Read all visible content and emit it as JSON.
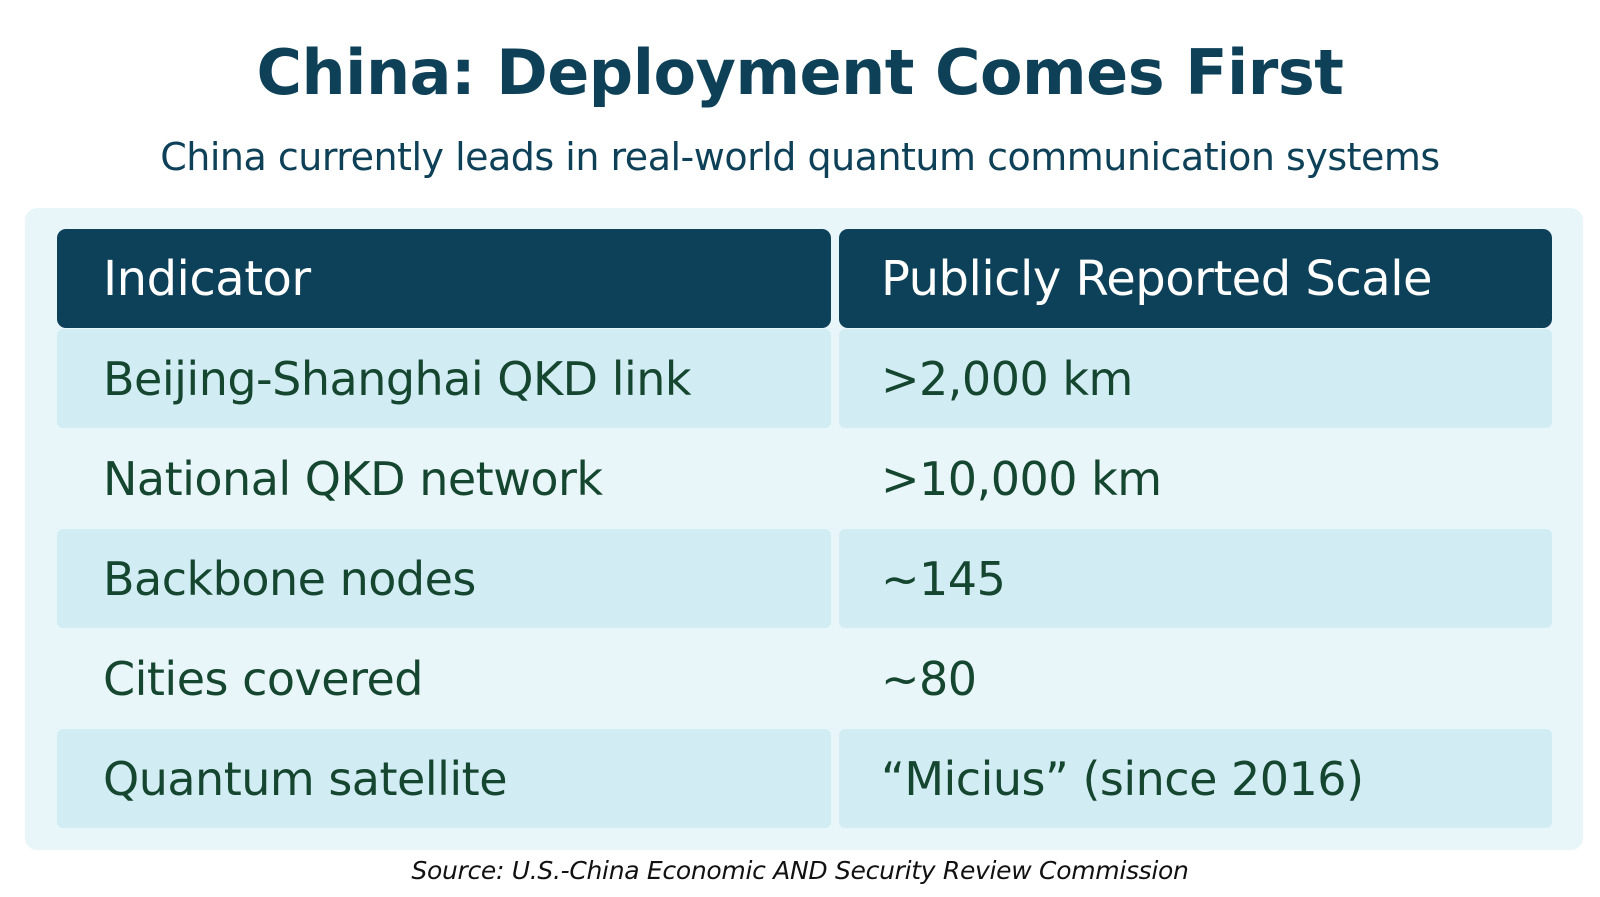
{
  "title": "China: Deployment Comes First",
  "subtitle": "China currently leads in real-world quantum communication systems",
  "source": "Source: U.S.-China Economic AND Security Review Commission",
  "colors": {
    "title_text": "#0e4158",
    "header_background": "#0d4159",
    "header_text": "#ffffff",
    "row_shaded": "#d2ecf4",
    "row_plain": "#e9f6f9",
    "panel_background": "#e9f6f9",
    "cell_text": "#15462f"
  },
  "chart_data": {
    "type": "table",
    "title": "China: Deployment Comes First",
    "subtitle": "China currently leads in real-world quantum communication systems",
    "columns": [
      "Indicator",
      "Publicly Reported Scale"
    ],
    "rows": [
      [
        "Beijing-Shanghai QKD link",
        ">2,000 km"
      ],
      [
        "National QKD network",
        ">10,000 km"
      ],
      [
        "Backbone nodes",
        "~145"
      ],
      [
        "Cities covered",
        "~80"
      ],
      [
        "Quantum satellite",
        "“Micius” (since 2016)"
      ]
    ]
  }
}
